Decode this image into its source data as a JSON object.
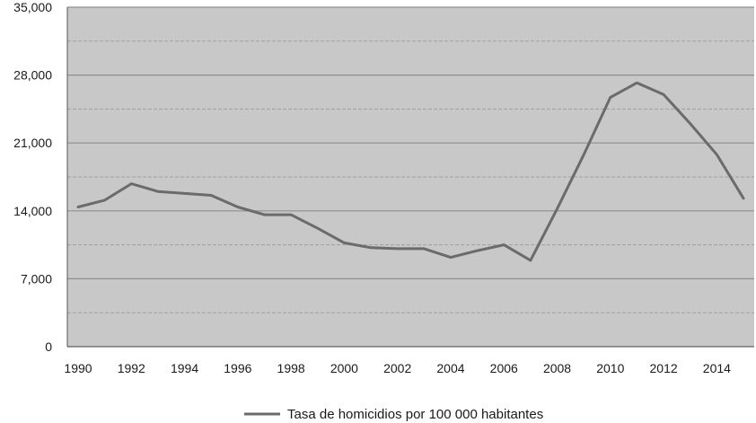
{
  "chart_data": {
    "type": "line",
    "title": "",
    "xlabel": "",
    "ylabel": "",
    "x": [
      1990,
      1991,
      1992,
      1993,
      1994,
      1995,
      1996,
      1997,
      1998,
      1999,
      2000,
      2001,
      2002,
      2003,
      2004,
      2005,
      2006,
      2007,
      2008,
      2009,
      2010,
      2011,
      2012,
      2013,
      2014,
      2015
    ],
    "series": [
      {
        "name": "Tasa de homicidios por 100 000 habitantes",
        "values": [
          14400,
          15100,
          16800,
          16000,
          15800,
          15600,
          14400,
          13600,
          13600,
          12200,
          10700,
          10200,
          10100,
          10100,
          9200,
          9900,
          10500,
          8900,
          14200,
          19800,
          25700,
          27200,
          26000,
          23000,
          19800,
          15300
        ],
        "color": "#6b6b6b"
      }
    ],
    "ylim": [
      0,
      35000
    ],
    "xlim": [
      1990,
      2015
    ],
    "yticks": [
      0,
      7000,
      14000,
      21000,
      28000,
      35000
    ],
    "ytick_labels": [
      "0",
      "7,000",
      "14,000",
      "21,000",
      "28,000",
      "35,000"
    ],
    "xticks": [
      1990,
      1992,
      1994,
      1996,
      1998,
      2000,
      2002,
      2004,
      2006,
      2008,
      2010,
      2012,
      2014
    ],
    "xtick_labels": [
      "1990",
      "1992",
      "1994",
      "1996",
      "1998",
      "2000",
      "2002",
      "2004",
      "2006",
      "2008",
      "2010",
      "2012",
      "2014"
    ],
    "grid": true,
    "plot_background": "#c8c8c8",
    "grid_color": "#8f8f8f",
    "legend_position": "bottom-center"
  }
}
